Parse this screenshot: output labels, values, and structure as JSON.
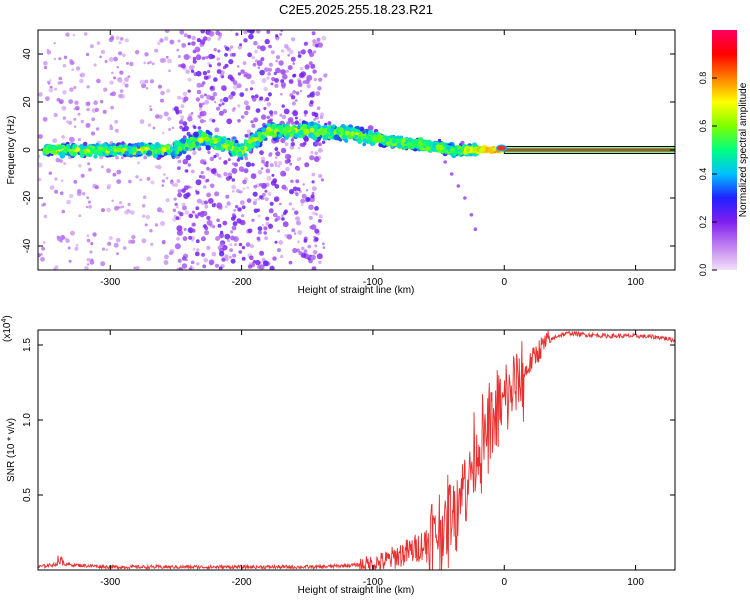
{
  "figure": {
    "title": "C2E5.2025.255.18.23.R21"
  },
  "colors": {
    "signal_line": "#e83030",
    "snr_trace": "#e83030",
    "colorbar_stops": [
      "#f2e0f8",
      "#c080f0",
      "#8020f0",
      "#2020ff",
      "#00c0ff",
      "#00ff80",
      "#80ff00",
      "#ffff00",
      "#ff8000",
      "#ff0000",
      "#ff0060"
    ]
  },
  "chart_data": [
    {
      "type": "heatmap",
      "name": "spectrogram",
      "xlabel": "Height of straight line (km)",
      "ylabel": "Frequency (Hz)",
      "xlim": [
        -355,
        130
      ],
      "ylim": [
        -50,
        50
      ],
      "xticks": [
        -300,
        -200,
        -100,
        0,
        100
      ],
      "yticks": [
        -40,
        -20,
        0,
        20,
        40
      ],
      "colorbar": {
        "label": "Normalized spectral amplitude",
        "range": [
          0.0,
          1.0
        ],
        "ticks": [
          0.0,
          0.2,
          0.4,
          0.6,
          0.8
        ]
      },
      "band_center_hz": {
        "x": [
          -350,
          -300,
          -250,
          -230,
          -200,
          -180,
          -150,
          -120,
          -100,
          -80,
          -60,
          -40,
          -20,
          0,
          130
        ],
        "y": [
          0,
          0,
          0,
          5,
          0,
          8,
          8,
          7,
          5,
          3,
          2,
          0,
          0,
          0,
          0
        ]
      },
      "tonal_line": {
        "x_range": [
          0,
          130
        ],
        "frequency_hz": 0,
        "amplitude": 0.9
      },
      "tail_points": {
        "x": [
          -45,
          -40,
          -35,
          -30,
          -25,
          -22
        ],
        "y": [
          -5,
          -10,
          -15,
          -20,
          -27,
          -33
        ]
      }
    },
    {
      "type": "line",
      "name": "snr",
      "xlabel": "Height of straight line (km)",
      "ylabel": "SNR (10 * v/v)",
      "y_scale_label": "(x10",
      "y_scale_exponent": "4",
      "xlim": [
        -355,
        130
      ],
      "ylim": [
        0,
        1.6
      ],
      "xticks": [
        -300,
        -200,
        -100,
        0,
        100
      ],
      "yticks": [
        0.5,
        1.0,
        1.5
      ],
      "ytick_labels": [
        "0.5",
        "1.0",
        "1.5"
      ],
      "series": [
        {
          "name": "SNR",
          "x": [
            -355,
            -340,
            -320,
            -300,
            -280,
            -260,
            -240,
            -220,
            -200,
            -180,
            -160,
            -140,
            -120,
            -100,
            -90,
            -80,
            -70,
            -60,
            -50,
            -45,
            -40,
            -35,
            -30,
            -25,
            -20,
            -15,
            -10,
            -5,
            0,
            5,
            10,
            15,
            20,
            25,
            30,
            40,
            50,
            60,
            80,
            100,
            120,
            130
          ],
          "y": [
            0.02,
            0.04,
            0.03,
            0.02,
            0.02,
            0.02,
            0.02,
            0.02,
            0.02,
            0.02,
            0.02,
            0.02,
            0.03,
            0.04,
            0.06,
            0.1,
            0.13,
            0.18,
            0.25,
            0.3,
            0.38,
            0.48,
            0.58,
            0.68,
            0.8,
            0.88,
            0.95,
            1.05,
            1.12,
            1.18,
            1.24,
            1.3,
            1.38,
            1.45,
            1.5,
            1.56,
            1.58,
            1.57,
            1.56,
            1.56,
            1.55,
            1.53
          ]
        }
      ]
    }
  ]
}
